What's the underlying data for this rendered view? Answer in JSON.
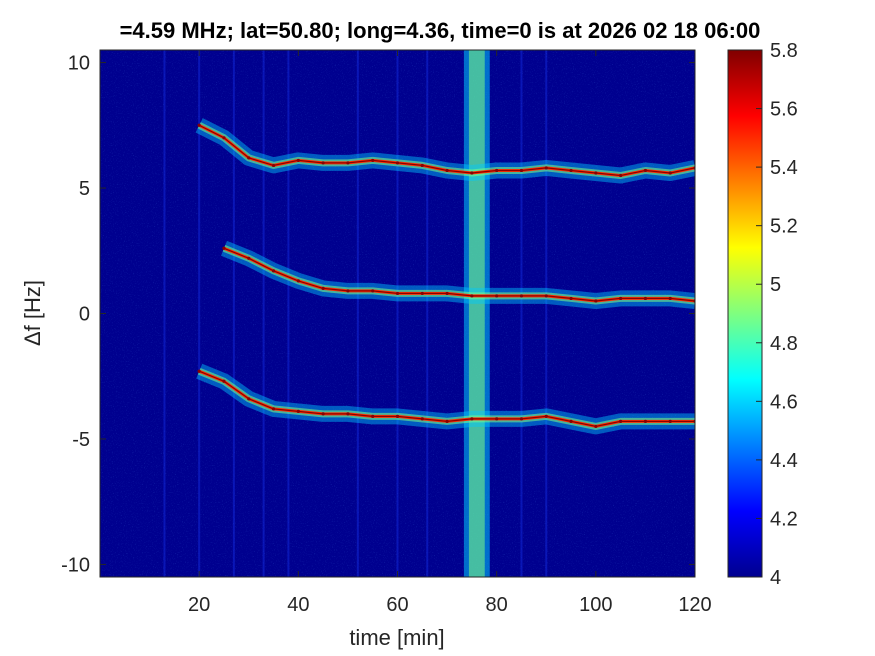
{
  "chart_data": {
    "type": "heatmap",
    "title": "=4.59 MHz;  lat=50.80; long=4.36, time=0 is at 2026 02 18 06:00",
    "xlabel": "time [min]",
    "ylabel": "Δf [Hz]",
    "xlim": [
      0,
      120
    ],
    "ylim": [
      -10.5,
      10.5
    ],
    "x_ticks": [
      20,
      40,
      60,
      80,
      100,
      120
    ],
    "x_tick_labels": [
      "20",
      "40",
      "60",
      "80",
      "100",
      "120"
    ],
    "y_ticks": [
      10,
      5,
      0,
      -5,
      -10
    ],
    "y_tick_labels": [
      "10",
      "5",
      "0",
      "-5",
      "-10"
    ],
    "colorbar": {
      "range": [
        4,
        5.8
      ],
      "ticks": [
        5.8,
        5.6,
        5.4,
        5.2,
        5,
        4.8,
        4.6,
        4.4,
        4.2,
        4
      ],
      "tick_labels": [
        "5.8",
        "5.6",
        "5.4",
        "5.2",
        "5",
        "4.8",
        "4.6",
        "4.4",
        "4.2",
        "4"
      ],
      "colormap": "jet"
    },
    "background_color": "#00008f",
    "series": [
      {
        "x": [
          20,
          25,
          30,
          35,
          40,
          45,
          50,
          55,
          60,
          65,
          70,
          75,
          80,
          85,
          90,
          95,
          100,
          105,
          110,
          115,
          120
        ],
        "values": [
          7.5,
          7.0,
          6.2,
          5.9,
          6.1,
          6.0,
          6.0,
          6.1,
          6.0,
          5.9,
          5.7,
          5.6,
          5.7,
          5.7,
          5.8,
          5.7,
          5.6,
          5.5,
          5.7,
          5.6,
          5.8
        ]
      },
      {
        "x": [
          25,
          30,
          35,
          40,
          45,
          50,
          55,
          60,
          65,
          70,
          75,
          80,
          85,
          90,
          95,
          100,
          105,
          110,
          115,
          120
        ],
        "values": [
          2.6,
          2.2,
          1.7,
          1.3,
          1.0,
          0.9,
          0.9,
          0.8,
          0.8,
          0.8,
          0.7,
          0.7,
          0.7,
          0.7,
          0.6,
          0.5,
          0.6,
          0.6,
          0.6,
          0.5
        ]
      },
      {
        "x": [
          20,
          25,
          30,
          35,
          40,
          45,
          50,
          55,
          60,
          65,
          70,
          75,
          80,
          85,
          90,
          95,
          100,
          105,
          110,
          115,
          120
        ],
        "values": [
          -2.3,
          -2.7,
          -3.4,
          -3.8,
          -3.9,
          -4.0,
          -4.0,
          -4.1,
          -4.1,
          -4.2,
          -4.3,
          -4.2,
          -4.2,
          -4.2,
          -4.1,
          -4.3,
          -4.5,
          -4.3,
          -4.3,
          -4.3,
          -4.3
        ]
      }
    ],
    "broadband_band_x": [
      74,
      78
    ]
  }
}
